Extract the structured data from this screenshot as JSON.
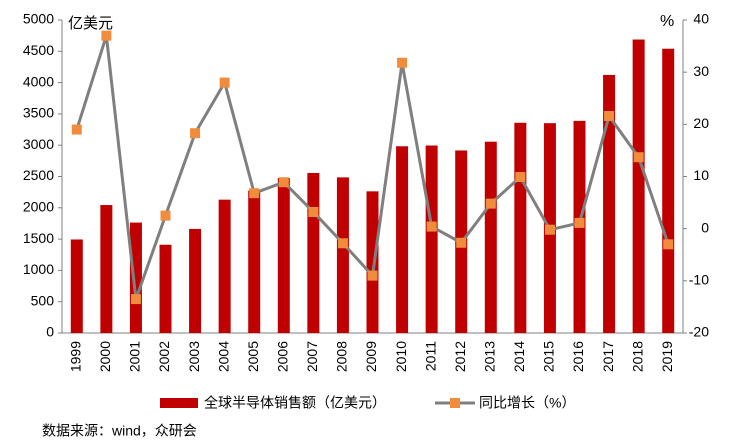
{
  "chart_data": {
    "type": "bar-line",
    "y_unit": "亿美元",
    "y2_unit": "%",
    "categories": [
      "1999",
      "2000",
      "2001",
      "2002",
      "2003",
      "2004",
      "2005",
      "2006",
      "2007",
      "2008",
      "2009",
      "2010",
      "2011",
      "2012",
      "2013",
      "2014",
      "2015",
      "2016",
      "2017",
      "2018",
      "2019"
    ],
    "series": [
      {
        "name": "全球半导体销售额（亿美元）",
        "type": "bar",
        "color": "#c00000",
        "values": [
          1494,
          2044,
          1764,
          1410,
          1662,
          2130,
          2275,
          2477,
          2556,
          2486,
          2263,
          2983,
          2995,
          2916,
          3056,
          3358,
          3352,
          3389,
          4122,
          4688,
          4541
        ]
      },
      {
        "name": "同比增长（%）",
        "type": "line",
        "axis": "y2",
        "color": "#7f7f7f",
        "marker_color": "#f08c3c",
        "values": [
          19,
          37,
          -13.5,
          2.5,
          18.3,
          28,
          6.8,
          8.9,
          3.2,
          -2.8,
          -9,
          31.8,
          0.4,
          -2.7,
          4.8,
          9.9,
          -0.2,
          1.1,
          21.6,
          13.7,
          -3
        ]
      }
    ],
    "ylim": [
      0,
      5000
    ],
    "yticks": [
      0,
      500,
      1000,
      1500,
      2000,
      2500,
      3000,
      3500,
      4000,
      4500,
      5000
    ],
    "y2lim": [
      -20,
      40
    ],
    "y2ticks": [
      -20,
      -10,
      0,
      10,
      20,
      30,
      40
    ],
    "source": "数据来源：wind，众研会"
  }
}
